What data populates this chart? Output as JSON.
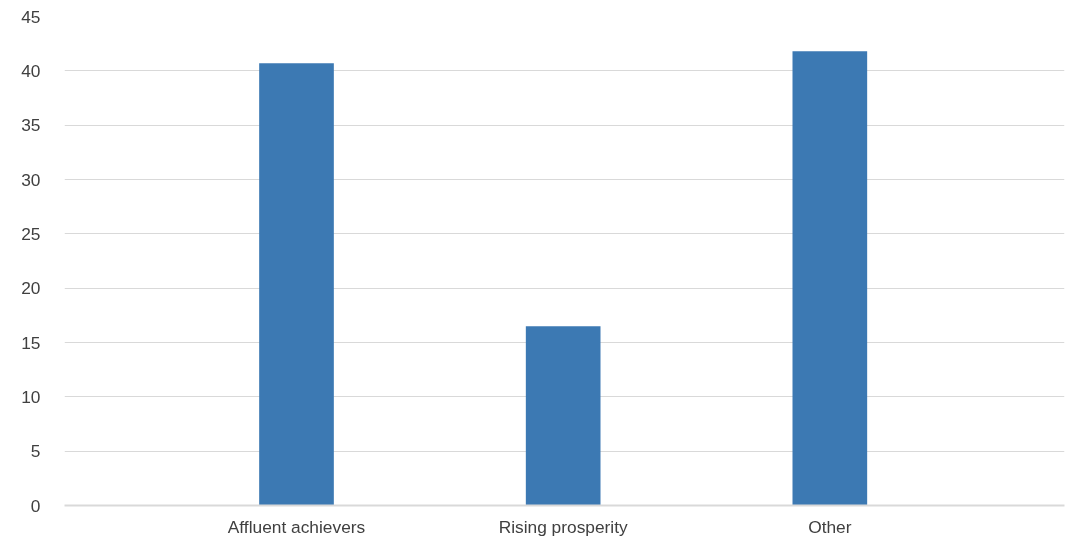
{
  "chart_data": {
    "type": "bar",
    "categories": [
      "Affluent achievers",
      "Rising prosperity",
      "Other"
    ],
    "values": [
      40.7,
      16.5,
      41.8
    ],
    "color": "#3c79b3",
    "ylim": [
      0,
      45
    ],
    "yticks": [
      0,
      5,
      10,
      15,
      20,
      25,
      30,
      35,
      40,
      45
    ],
    "grid": "y"
  }
}
